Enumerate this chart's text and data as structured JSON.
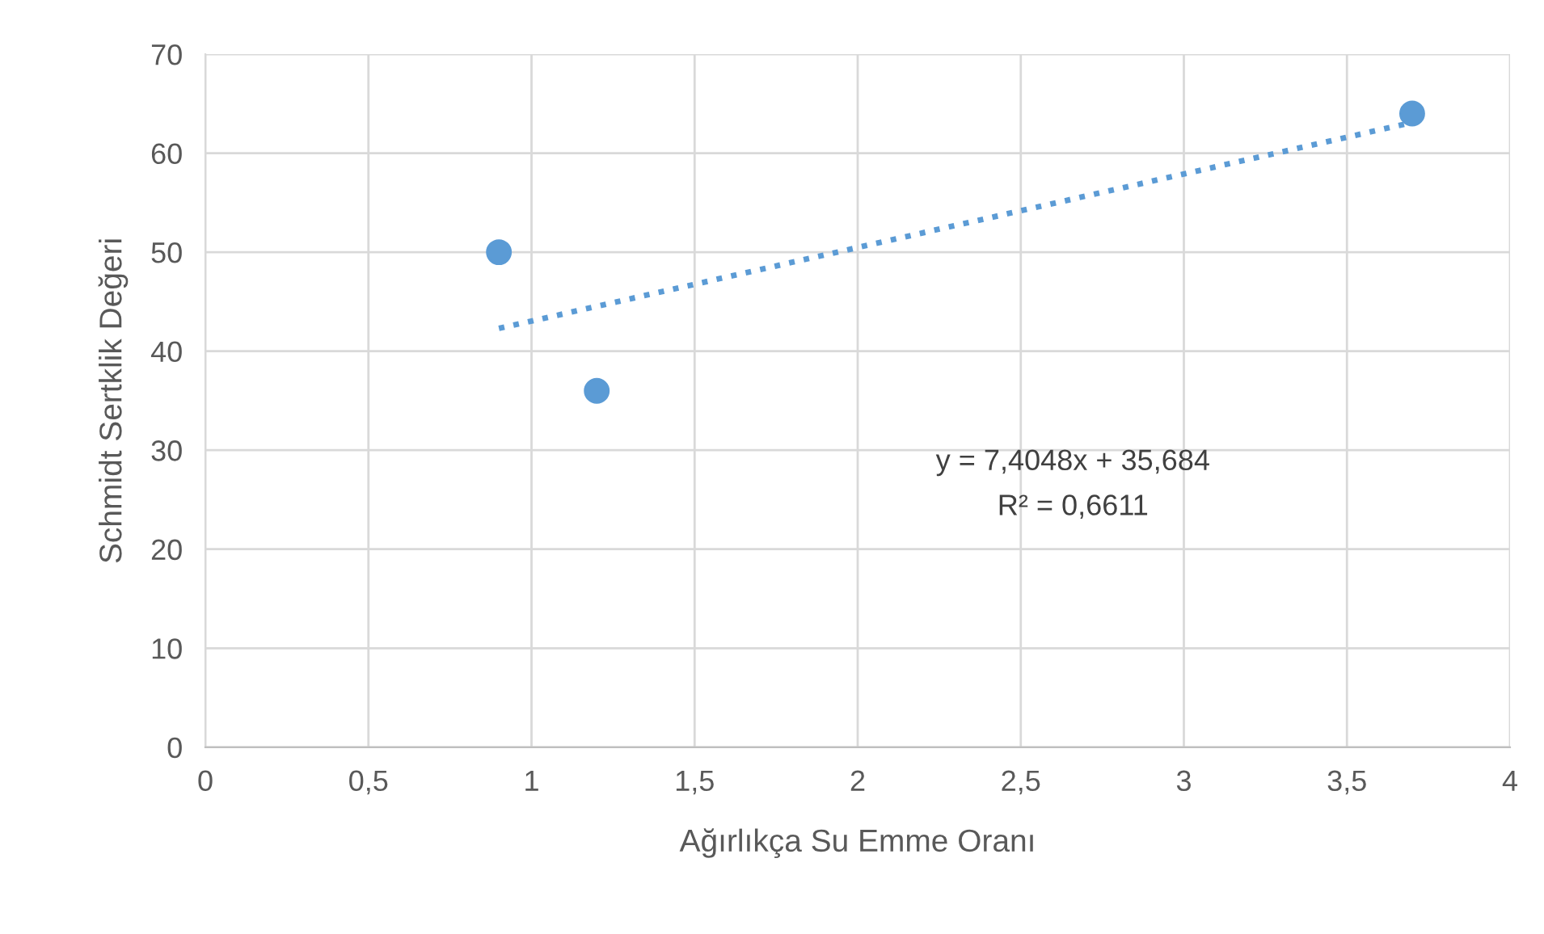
{
  "chart_data": {
    "type": "scatter",
    "xlabel": "Ağırlıkça Su Emme Oranı",
    "ylabel": "Schmidt Sertklik Değeri",
    "series": [
      {
        "color": "#5b9bd5",
        "x": [
          0.9,
          1.2,
          3.7
        ],
        "values": [
          50,
          36,
          64
        ],
        "marker": "circle"
      },
      {
        "type": "line",
        "color": "#5b9bd5",
        "x": [
          0.9,
          3.7
        ],
        "values": [
          42.3,
          63.1
        ],
        "line_style": "dotted",
        "marker": "none"
      }
    ],
    "annotations": [
      "y = 7,4048x + 35,684",
      "R² = 0,6611"
    ],
    "xlim": [
      0,
      4
    ],
    "ylim": [
      0,
      70
    ],
    "xticks": [
      0,
      {
        "value": 0.5,
        "label": "0,5"
      },
      1,
      {
        "value": 1.5,
        "label": "1,5"
      },
      2,
      {
        "value": 2.5,
        "label": "2,5"
      },
      3,
      {
        "value": 3.5,
        "label": "3,5"
      },
      4
    ],
    "yticks": [
      0,
      10,
      20,
      30,
      40,
      50,
      60,
      70
    ],
    "grid": true,
    "legend": false
  }
}
